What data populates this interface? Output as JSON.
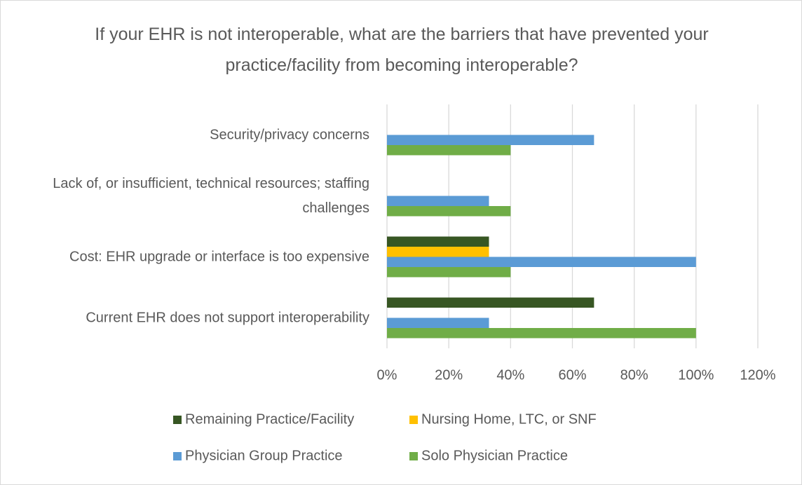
{
  "chart_data": {
    "type": "bar",
    "orientation": "horizontal",
    "title": "If your EHR is not interoperable, what are the barriers that have prevented your practice/facility from becoming interoperable?",
    "categories": [
      "Security/privacy concerns",
      "Lack of, or insufficient, technical resources; staffing challenges",
      "Cost: EHR upgrade or interface is too expensive",
      "Current EHR does not support interoperability"
    ],
    "series": [
      {
        "name": "Remaining Practice/Facility",
        "color": "#375623",
        "values": [
          0,
          0,
          33,
          67
        ]
      },
      {
        "name": "Nursing Home, LTC, or SNF",
        "color": "#ffc000",
        "values": [
          0,
          0,
          33,
          0
        ]
      },
      {
        "name": "Physician Group Practice",
        "color": "#5b9bd5",
        "values": [
          67,
          33,
          100,
          33
        ]
      },
      {
        "name": "Solo Physician Practice",
        "color": "#70ad47",
        "values": [
          40,
          40,
          40,
          100
        ]
      }
    ],
    "xlim": [
      0,
      120
    ],
    "xticks": [
      {
        "value": 0,
        "label": "0%"
      },
      {
        "value": 20,
        "label": "20%"
      },
      {
        "value": 40,
        "label": "40%"
      },
      {
        "value": 60,
        "label": "60%"
      },
      {
        "value": 80,
        "label": "80%"
      },
      {
        "value": 100,
        "label": "100%"
      },
      {
        "value": 120,
        "label": "120%"
      }
    ],
    "grid": true,
    "legend": "bottom"
  }
}
